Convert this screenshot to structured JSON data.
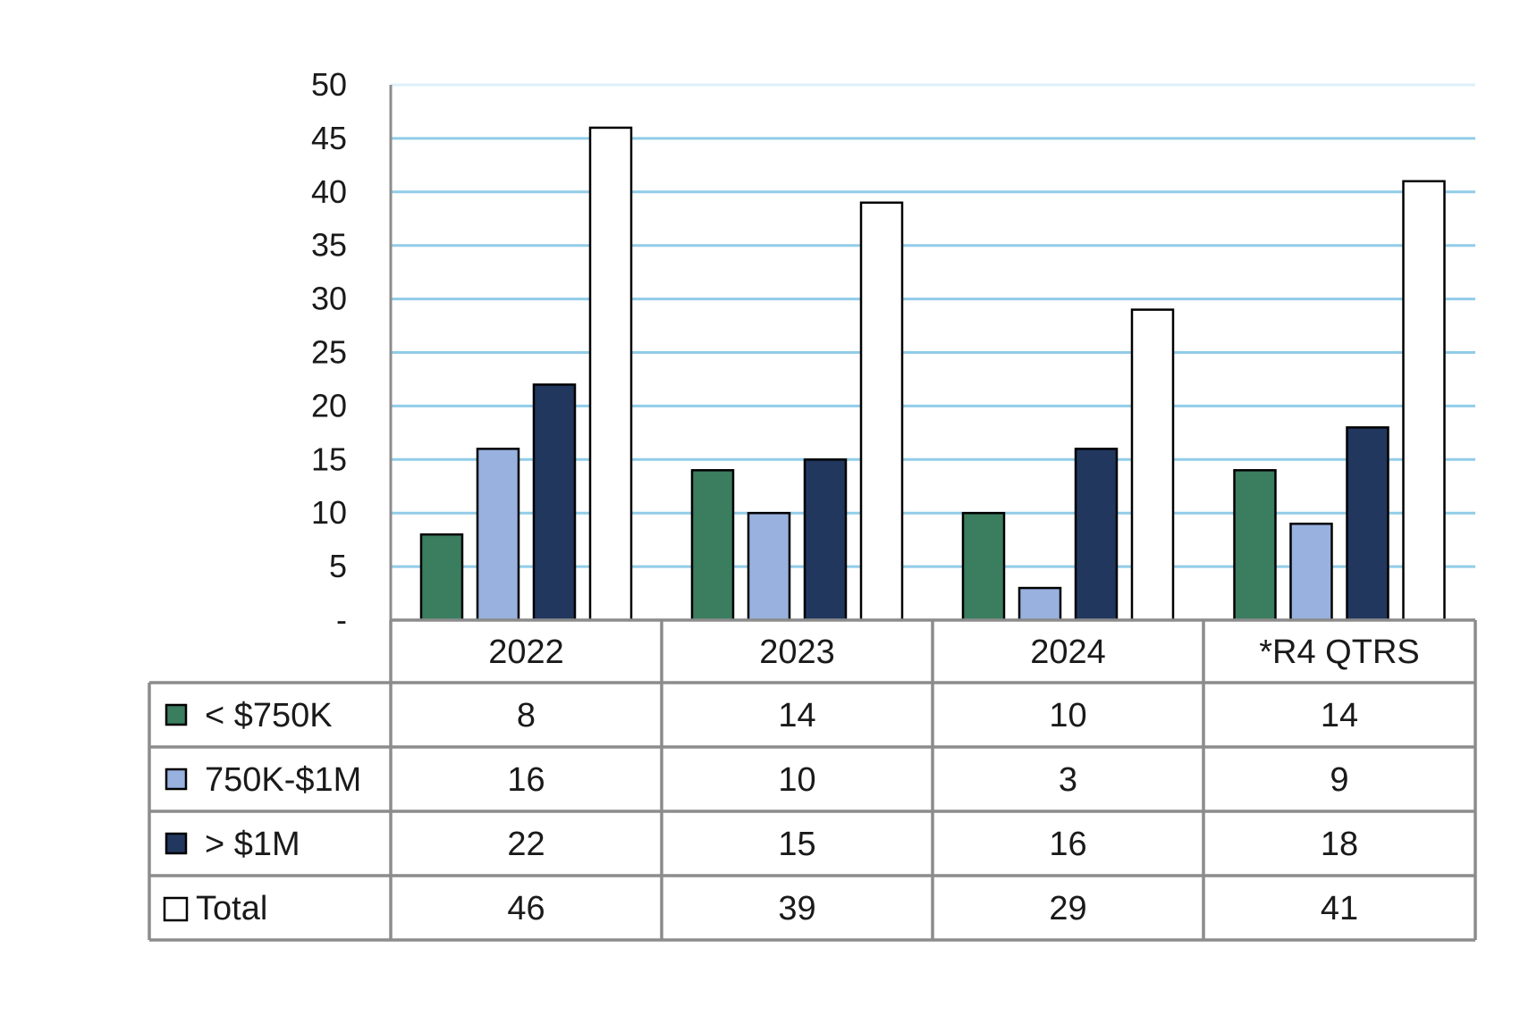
{
  "chart_data": {
    "type": "bar",
    "categories": [
      "2022",
      "2023",
      "2024",
      "*R4 QTRS"
    ],
    "series": [
      {
        "name": "< $750K",
        "values": [
          8,
          14,
          10,
          14
        ],
        "color": "#3a7d5f"
      },
      {
        "name": "750K-$1M",
        "values": [
          16,
          10,
          3,
          9
        ],
        "color": "#98b1df"
      },
      {
        "name": "> $1M",
        "values": [
          22,
          15,
          16,
          18
        ],
        "color": "#21375e"
      },
      {
        "name": "Total",
        "values": [
          46,
          39,
          29,
          41
        ],
        "color": "#ffffff"
      }
    ],
    "ylim": [
      0,
      50
    ],
    "yticks": [
      0,
      5,
      10,
      15,
      20,
      25,
      30,
      35,
      40,
      45,
      50
    ],
    "ytick_labels": [
      "-",
      "5",
      "10",
      "15",
      "20",
      "25",
      "30",
      "35",
      "40",
      "45",
      "50"
    ],
    "grid": true,
    "grid_color": "#7ec4e4",
    "bar_outline_color": "#000000",
    "legend": "data-table-below",
    "data_table": {
      "rows": [
        {
          "label": "< $750K",
          "cells": [
            "8",
            "14",
            "10",
            "14"
          ]
        },
        {
          "label": "750K-$1M",
          "cells": [
            "16",
            "10",
            "3",
            "9"
          ]
        },
        {
          "label": "> $1M",
          "cells": [
            "22",
            "15",
            "16",
            "18"
          ]
        },
        {
          "label": "Total",
          "cells": [
            "46",
            "39",
            "29",
            "41"
          ]
        }
      ]
    }
  }
}
